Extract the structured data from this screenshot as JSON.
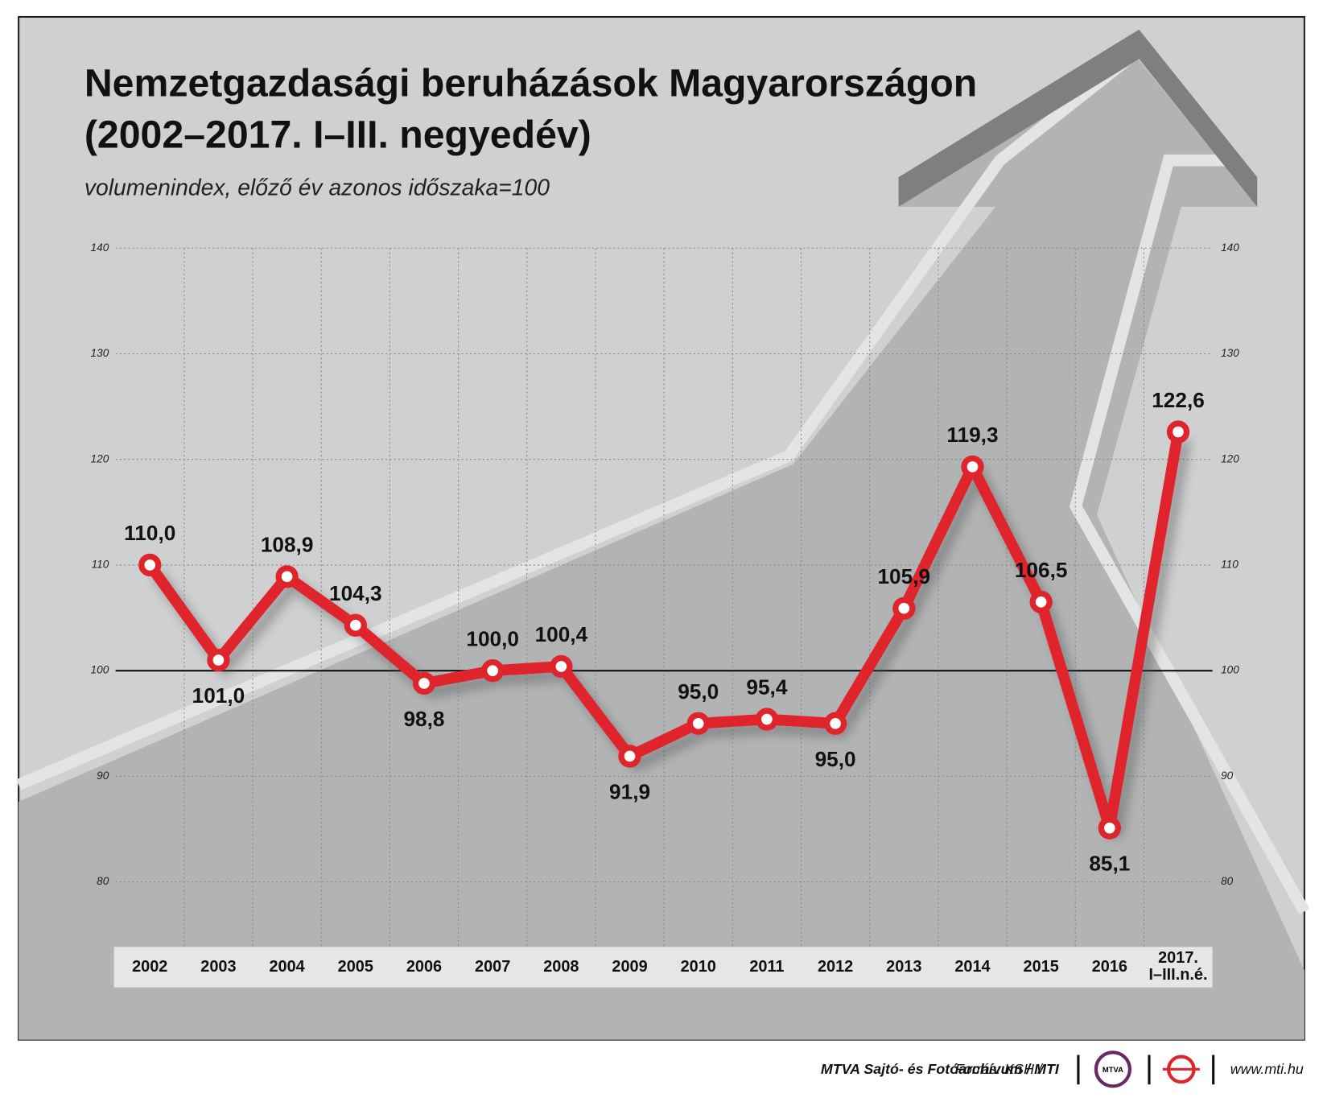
{
  "chart_data": {
    "type": "line",
    "title": "Nemzetgazdasági beruházások Magyarországon",
    "title_line2": "(2002–2017. I–III. negyedév)",
    "subtitle": "volumenindex, előző év azonos időszaka=100",
    "categories": [
      "2002",
      "2003",
      "2004",
      "2005",
      "2006",
      "2007",
      "2008",
      "2009",
      "2010",
      "2011",
      "2012",
      "2013",
      "2014",
      "2015",
      "2016",
      "2017.\nI–III.n.é."
    ],
    "values": [
      110.0,
      101.0,
      108.9,
      104.3,
      98.8,
      100.0,
      100.4,
      91.9,
      95.0,
      95.4,
      95.0,
      105.9,
      119.3,
      106.5,
      85.1,
      122.6
    ],
    "value_labels": [
      "110,0",
      "101,0",
      "108,9",
      "104,3",
      "98,8",
      "100,0",
      "100,4",
      "91,9",
      "95,0",
      "95,4",
      "95,0",
      "105,9",
      "119,3",
      "106,5",
      "85,1",
      "122,6"
    ],
    "color": "#e0242b",
    "ylim": [
      80,
      140
    ],
    "yticks": [
      80,
      90,
      100,
      110,
      120,
      130,
      140
    ],
    "reference_line": 100,
    "grid": true,
    "right_axis": true
  },
  "footer": {
    "source": "Forrás: KSH /",
    "organization": "MTVA Sajtó- és Fotóarchívum / MTI",
    "logo_text": "MTVA",
    "website": "www.mti.hu"
  }
}
